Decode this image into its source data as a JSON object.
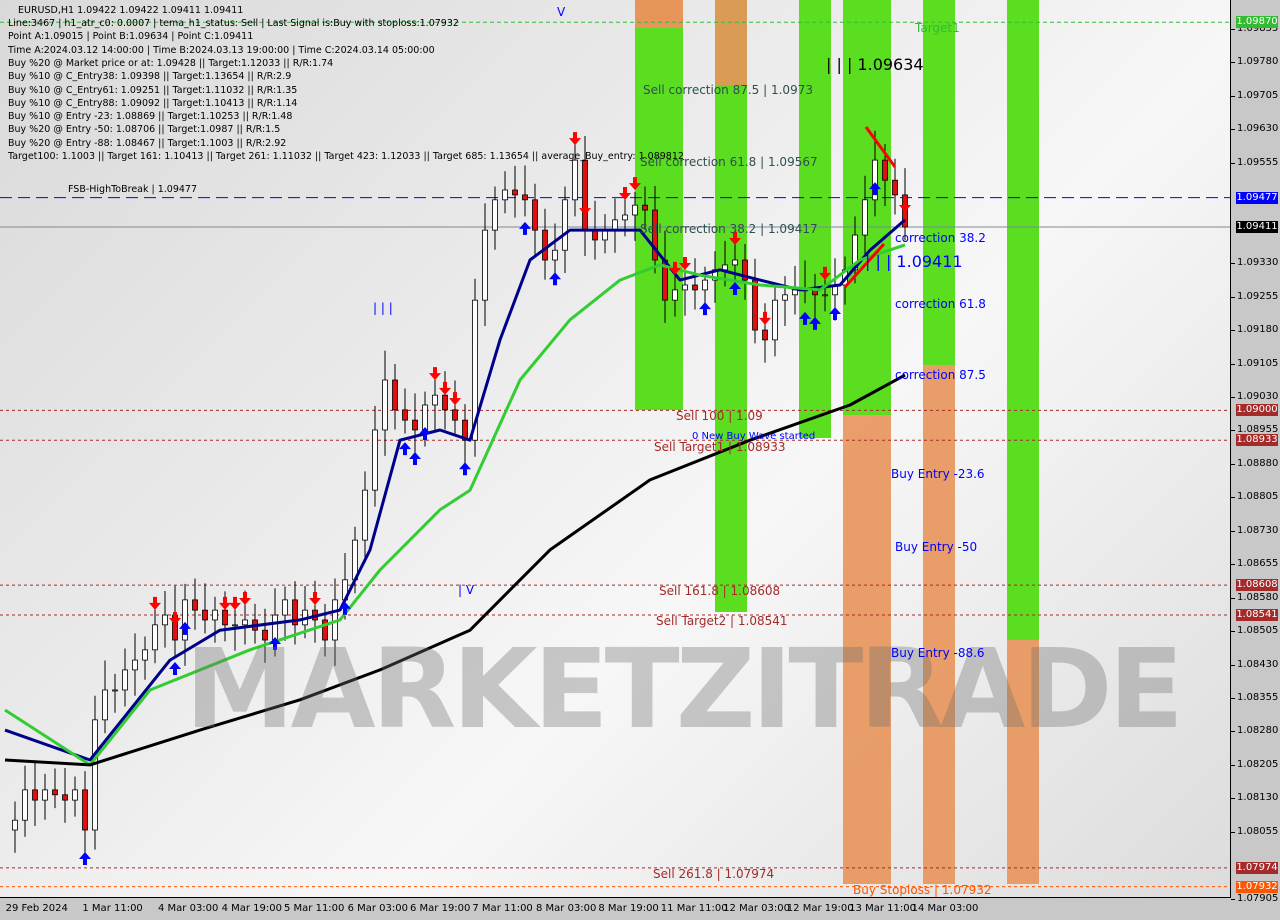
{
  "header": {
    "symbol_line": "EURUSD,H1  1.09422 1.09422 1.09411 1.09411",
    "info_lines": [
      "Line:3467 | h1_atr_c0: 0.0007 | tema_h1_status: Sell | Last Signal is:Buy with stoploss:1.07932",
      "Point A:1.09015 | Point B:1.09634 | Point C:1.09411",
      "Time A:2024.03.12 14:00:00 | Time B:2024.03.13 19:00:00 | Time C:2024.03.14 05:00:00",
      "Buy %20 @ Market price or at: 1.09428 || Target:1.12033 || R/R:1.74",
      "Buy %10 @ C_Entry38: 1.09398 || Target:1.13654 || R/R:2.9",
      "Buy %10 @ C_Entry61: 1.09251 || Target:1.11032 || R/R:1.35",
      "Buy %10 @ C_Entry88: 1.09092 || Target:1.10413 || R/R:1.14",
      "Buy %10 @ Entry -23: 1.08869 || Target:1.10253 || R/R:1.48",
      "Buy %20 @ Entry -50: 1.08706 || Target:1.0987 || R/R:1.5",
      "Buy %20 @ Entry -88: 1.08467 || Target:1.1003 || R/R:2.92",
      "Target100: 1.1003 || Target 161: 1.10413 || Target 261: 1.11032 || Target 423: 1.12033 || Target 685: 1.13654 || average_Buy_entry: 1.089812"
    ]
  },
  "labels": {
    "fsb": "FSB-HighToBreak | 1.09477",
    "target1": "Target1",
    "point_b": "| | | 1.09634",
    "point_c": "| | | 1.09411",
    "sell_corr_875": "Sell correction 87.5 | 1.0973",
    "sell_corr_618": "Sell correction 61.8 | 1.09567",
    "sell_corr_382": "Sell correction 38.2 | 1.09417",
    "corr_382": "correction 38.2",
    "corr_618": "correction 61.8",
    "corr_875": "correction 87.5",
    "sell_100": "Sell 100 | 1.09",
    "new_buy_wave": "0 New Buy Wave started",
    "sell_target1": "Sell Target1 | 1.08933",
    "buy_entry_236": "Buy Entry -23.6",
    "buy_entry_50": "Buy Entry -50",
    "buy_entry_886": "Buy Entry -88.6",
    "sell_1618": "Sell 161.8 | 1.08608",
    "sell_target2": "Sell Target2 | 1.08541",
    "sell_2618": "Sell  261.8 | 1.07974",
    "buy_stoploss": "Buy Stoploss | 1.07932",
    "wave_iii": "| | |",
    "wave_v": "V",
    "wave_iv": "| V",
    "watermark": "MARKETZITRADE"
  },
  "colors": {
    "bull_zone": "#5ade1f",
    "bear_zone": "#e8955a",
    "fast_ma": "#00008b",
    "mid_ma": "#33cc33",
    "slow_ma": "#000000",
    "sell_arrow": "#ff0000",
    "buy_arrow": "#0000ff"
  },
  "chart_data": {
    "type": "line",
    "symbol": "EURUSD",
    "timeframe": "H1",
    "x_tick_labels": [
      "29 Feb 2024",
      "1 Mar 11:00",
      "4 Mar 03:00",
      "4 Mar 19:00",
      "5 Mar 11:00",
      "6 Mar 03:00",
      "6 Mar 19:00",
      "7 Mar 11:00",
      "8 Mar 03:00",
      "8 Mar 19:00",
      "11 Mar 11:00",
      "12 Mar 03:00",
      "12 Mar 19:00",
      "13 Mar 11:00",
      "14 Mar 03:00"
    ],
    "y_tick_labels": [
      "1.09855",
      "1.09780",
      "1.09705",
      "1.09630",
      "1.09555",
      "1.09330",
      "1.09255",
      "1.09180",
      "1.09105",
      "1.09030",
      "1.08955",
      "1.08880",
      "1.08805",
      "1.08730",
      "1.08655",
      "1.08580",
      "1.08505",
      "1.08430",
      "1.08355",
      "1.08280",
      "1.08205",
      "1.08130",
      "1.08055",
      "1.07905"
    ],
    "ylim": [
      1.07895,
      1.0992
    ],
    "closes": [
      1.08059,
      1.08081,
      1.08149,
      1.08126,
      1.08149,
      1.08138,
      1.08126,
      1.08149,
      1.08059,
      1.08306,
      1.08373,
      1.08373,
      1.08418,
      1.0844,
      1.08463,
      1.08519,
      1.08541,
      1.08485,
      1.08575,
      1.08552,
      1.0853,
      1.08552,
      1.08519,
      1.08519,
      1.0853,
      1.08507,
      1.08485,
      1.08541,
      1.08575,
      1.08519,
      1.08552,
      1.0853,
      1.08485,
      1.08575,
      1.0862,
      1.08709,
      1.08821,
      1.08956,
      1.09068,
      1.09001,
      1.08978,
      1.08956,
      1.09012,
      1.09034,
      1.09001,
      1.08978,
      1.08933,
      1.09247,
      1.09404,
      1.09472,
      1.09494,
      1.09483,
      1.09472,
      1.09404,
      1.09337,
      1.09359,
      1.09472,
      1.09561,
      1.09404,
      1.09382,
      1.09404,
      1.09427,
      1.09438,
      1.0946,
      1.09449,
      1.09337,
      1.09247,
      1.0927,
      1.09281,
      1.0927,
      1.09292,
      1.09315,
      1.09326,
      1.09337,
      1.09292,
      1.0918,
      1.09158,
      1.09247,
      1.09259,
      1.0927,
      1.0927,
      1.09259,
      1.09259,
      1.09281,
      1.09315,
      1.09393,
      1.09472,
      1.09561,
      1.09516,
      1.09483,
      1.09411
    ],
    "series_ma": [
      {
        "key": "fast",
        "points": [
          [
            0,
            1.08283
          ],
          [
            8.5,
            1.08216
          ],
          [
            16.5,
            1.0844
          ],
          [
            21.5,
            1.08507
          ],
          [
            29.5,
            1.0853
          ],
          [
            33.5,
            1.08552
          ],
          [
            36.5,
            1.08687
          ],
          [
            39.5,
            1.08933
          ],
          [
            43.5,
            1.08956
          ],
          [
            46.5,
            1.08933
          ],
          [
            49.5,
            1.09158
          ],
          [
            52.5,
            1.09337
          ],
          [
            56.5,
            1.09404
          ],
          [
            59.5,
            1.09404
          ],
          [
            63.5,
            1.09404
          ],
          [
            67.5,
            1.09292
          ],
          [
            71.5,
            1.09315
          ],
          [
            75.5,
            1.09292
          ],
          [
            79.5,
            1.0927
          ],
          [
            83.5,
            1.09281
          ],
          [
            86.5,
            1.09359
          ],
          [
            90,
            1.09427
          ]
        ]
      },
      {
        "key": "mid",
        "points": [
          [
            0,
            1.08328
          ],
          [
            8.5,
            1.08205
          ],
          [
            14.5,
            1.08373
          ],
          [
            24.5,
            1.08463
          ],
          [
            33.5,
            1.0853
          ],
          [
            37.5,
            1.08642
          ],
          [
            43.5,
            1.08777
          ],
          [
            46.5,
            1.08821
          ],
          [
            51.5,
            1.09068
          ],
          [
            56.5,
            1.09203
          ],
          [
            61.5,
            1.09292
          ],
          [
            65.5,
            1.09326
          ],
          [
            69.5,
            1.09303
          ],
          [
            75.5,
            1.09281
          ],
          [
            81.5,
            1.0927
          ],
          [
            85.5,
            1.09337
          ],
          [
            90,
            1.09371
          ]
        ]
      },
      {
        "key": "slow",
        "points": [
          [
            0,
            1.08216
          ],
          [
            8.5,
            1.08205
          ],
          [
            19.5,
            1.08283
          ],
          [
            29.5,
            1.08351
          ],
          [
            37.5,
            1.08418
          ],
          [
            46.5,
            1.08507
          ],
          [
            54.5,
            1.08687
          ],
          [
            64.5,
            1.08844
          ],
          [
            74.5,
            1.08933
          ],
          [
            84.5,
            1.09012
          ],
          [
            90,
            1.09079
          ]
        ]
      }
    ],
    "levels": [
      {
        "price": 1.0987,
        "label": "1.09870",
        "color": "#33bb33",
        "style": "dash"
      },
      {
        "price": 1.09477,
        "label": "1.09477",
        "color": "#0000ff",
        "style": "longdash"
      },
      {
        "price": 1.09411,
        "label": "1.09411",
        "color": "#000000",
        "style": "solid"
      },
      {
        "price": 1.09,
        "label": "1.09000",
        "color": "#a52a2a",
        "style": "dot"
      },
      {
        "price": 1.08933,
        "label": "1.08933",
        "color": "#a52a2a",
        "style": "dot"
      },
      {
        "price": 1.08608,
        "label": "1.08608",
        "color": "#a52a2a",
        "style": "dot"
      },
      {
        "price": 1.08541,
        "label": "1.08541",
        "color": "#a52a2a",
        "style": "dot"
      },
      {
        "price": 1.07974,
        "label": "1.07974",
        "color": "#a52a2a",
        "style": "dot"
      },
      {
        "price": 1.07932,
        "label": "1.07932",
        "color": "#ff5500",
        "style": "dot"
      }
    ],
    "sell_signals": [
      15,
      17,
      22,
      23,
      24,
      31,
      43,
      44,
      45,
      57,
      58,
      62,
      63,
      67,
      68,
      73,
      76,
      82,
      90
    ],
    "buy_signals": [
      8,
      17,
      18,
      27,
      34,
      40,
      41,
      42,
      46,
      52,
      55,
      70,
      73,
      80,
      81,
      83,
      87
    ]
  }
}
